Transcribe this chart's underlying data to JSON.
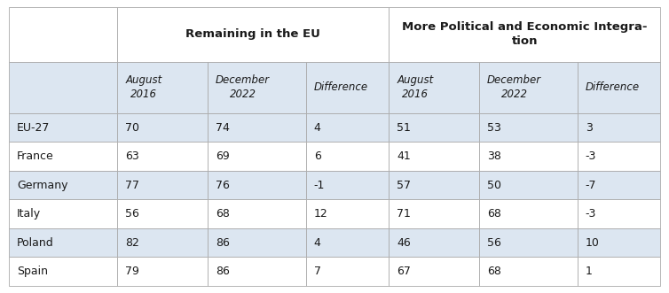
{
  "rows": [
    "EU-27",
    "France",
    "Germany",
    "Italy",
    "Poland",
    "Spain"
  ],
  "remaining_aug2016": [
    70,
    63,
    77,
    56,
    82,
    79
  ],
  "remaining_dec2022": [
    74,
    69,
    76,
    68,
    86,
    86
  ],
  "remaining_diff": [
    4,
    6,
    -1,
    12,
    4,
    7
  ],
  "integration_aug2016": [
    51,
    41,
    57,
    71,
    46,
    67
  ],
  "integration_dec2022": [
    53,
    38,
    50,
    68,
    56,
    68
  ],
  "integration_diff": [
    3,
    -3,
    -7,
    -3,
    10,
    1
  ],
  "header1": "Remaining in the EU",
  "header2": "More Political and Economic Integra-\ntion",
  "subheader_col1": "August\n2016",
  "subheader_col2": "December\n2022",
  "subheader_col3": "Difference",
  "subheader_col4": "August\n2016",
  "subheader_col5": "December\n2022",
  "subheader_col6": "Difference",
  "bg_header": "#ffffff",
  "bg_subheader": "#dce6f1",
  "bg_light": "#dce6f1",
  "bg_white": "#ffffff",
  "border_color": "#aaaaaa",
  "text_color": "#1a1a1a",
  "figsize": [
    7.54,
    3.31
  ],
  "dpi": 100
}
